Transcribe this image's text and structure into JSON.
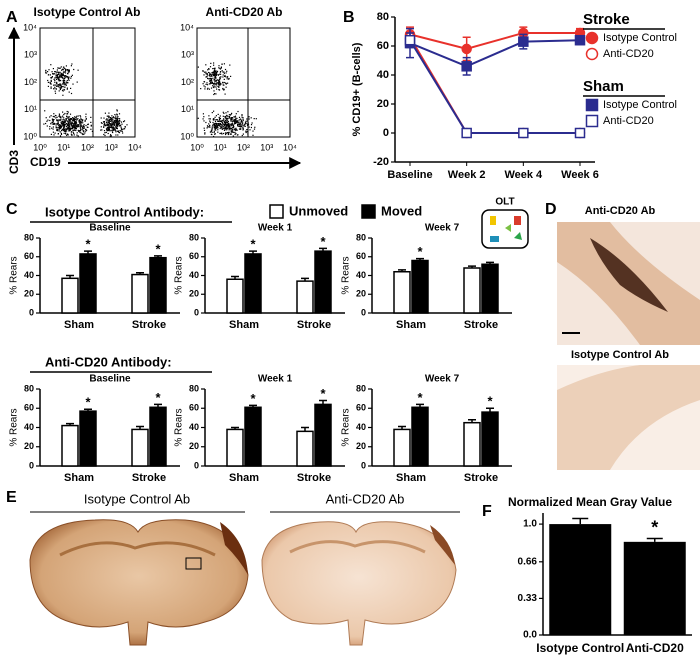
{
  "figure": {
    "panel_labels": [
      "A",
      "B",
      "C",
      "D",
      "E",
      "F"
    ],
    "panel_a": {
      "titles": [
        "Isotype Control Ab",
        "Anti-CD20 Ab"
      ],
      "tick_labels": [
        "10⁰",
        "10¹",
        "10²",
        "10³",
        "10⁴"
      ],
      "y_axis": "CD3",
      "x_axis": "CD19"
    },
    "panel_c": {
      "group_titles": [
        "Isotype Control Antibody:",
        "Anti-CD20 Antibody:"
      ],
      "icon_label": "OLT"
    },
    "panel_d": {
      "titles": [
        "Anti-CD20 Ab",
        "Isotype Control Ab"
      ]
    },
    "panel_e": {
      "titles": [
        "Isotype Control Ab",
        "Anti-CD20 Ab"
      ]
    }
  },
  "chart_data": [
    {
      "type": "line",
      "y_label": "% CD19+ (B-cells)",
      "categories": [
        "Baseline",
        "Week 2",
        "Week 4",
        "Week 6"
      ],
      "ylim": [
        -20,
        80
      ],
      "yticks": [
        -20,
        0,
        20,
        40,
        60,
        80
      ],
      "legend_groups": [
        "Stroke",
        "Sham"
      ],
      "series": [
        {
          "name": "Isotype Control",
          "color": "#e8312b",
          "marker": "circle",
          "filled": true,
          "values": [
            68,
            58,
            69,
            69
          ],
          "errors": [
            5,
            8,
            4,
            3
          ]
        },
        {
          "name": "Anti-CD20",
          "color": "#e8312b",
          "marker": "circle",
          "filled": false,
          "values": [
            66,
            0,
            0,
            0
          ],
          "errors": [
            4,
            1,
            1,
            1
          ]
        },
        {
          "name": "Isotype Control",
          "color": "#2b2c8f",
          "marker": "square",
          "filled": true,
          "values": [
            62,
            46,
            63,
            64
          ],
          "errors": [
            10,
            6,
            5,
            3
          ]
        },
        {
          "name": "Anti-CD20",
          "color": "#2b2c8f",
          "marker": "square",
          "filled": false,
          "values": [
            64,
            0,
            0,
            0
          ],
          "errors": [
            5,
            1,
            1,
            1
          ]
        }
      ]
    },
    {
      "type": "bar",
      "title": "Baseline",
      "y_label": "% Rears",
      "categories": [
        "Sham",
        "Stroke"
      ],
      "ylim": [
        0,
        80
      ],
      "yticks": [
        0,
        20,
        40,
        60,
        80
      ],
      "significance": [
        "*",
        "*"
      ],
      "series": [
        {
          "name": "Unmoved",
          "color": "#ffffff",
          "values": [
            37,
            41
          ],
          "errors": [
            3,
            2
          ]
        },
        {
          "name": "Moved",
          "color": "#000000",
          "values": [
            63,
            59
          ],
          "errors": [
            3,
            2
          ]
        }
      ]
    },
    {
      "type": "bar",
      "title": "Week 1",
      "y_label": "% Rears",
      "categories": [
        "Sham",
        "Stroke"
      ],
      "ylim": [
        0,
        80
      ],
      "yticks": [
        0,
        20,
        40,
        60,
        80
      ],
      "significance": [
        "*",
        "*"
      ],
      "series": [
        {
          "name": "Unmoved",
          "color": "#ffffff",
          "values": [
            36,
            34
          ],
          "errors": [
            3,
            3
          ]
        },
        {
          "name": "Moved",
          "color": "#000000",
          "values": [
            63,
            66
          ],
          "errors": [
            3,
            3
          ]
        }
      ]
    },
    {
      "type": "bar",
      "title": "Week 7",
      "y_label": "% Rears",
      "categories": [
        "Sham",
        "Stroke"
      ],
      "ylim": [
        0,
        80
      ],
      "yticks": [
        0,
        20,
        40,
        60,
        80
      ],
      "significance": [
        "*",
        null
      ],
      "series": [
        {
          "name": "Unmoved",
          "color": "#ffffff",
          "values": [
            44,
            48
          ],
          "errors": [
            2,
            2
          ]
        },
        {
          "name": "Moved",
          "color": "#000000",
          "values": [
            56,
            52
          ],
          "errors": [
            2,
            2
          ]
        }
      ]
    },
    {
      "type": "bar",
      "title": "Baseline",
      "y_label": "% Rears",
      "categories": [
        "Sham",
        "Stroke"
      ],
      "ylim": [
        0,
        80
      ],
      "yticks": [
        0,
        20,
        40,
        60,
        80
      ],
      "significance": [
        "*",
        "*"
      ],
      "series": [
        {
          "name": "Unmoved",
          "color": "#ffffff",
          "values": [
            42,
            38
          ],
          "errors": [
            2,
            3
          ]
        },
        {
          "name": "Moved",
          "color": "#000000",
          "values": [
            57,
            61
          ],
          "errors": [
            2,
            3
          ]
        }
      ]
    },
    {
      "type": "bar",
      "title": "Week 1",
      "y_label": "% Rears",
      "categories": [
        "Sham",
        "Stroke"
      ],
      "ylim": [
        0,
        80
      ],
      "yticks": [
        0,
        20,
        40,
        60,
        80
      ],
      "significance": [
        "*",
        "*"
      ],
      "series": [
        {
          "name": "Unmoved",
          "color": "#ffffff",
          "values": [
            38,
            36
          ],
          "errors": [
            2,
            4
          ]
        },
        {
          "name": "Moved",
          "color": "#000000",
          "values": [
            61,
            64
          ],
          "errors": [
            2,
            4
          ]
        }
      ]
    },
    {
      "type": "bar",
      "title": "Week 7",
      "y_label": "% Rears",
      "categories": [
        "Sham",
        "Stroke"
      ],
      "ylim": [
        0,
        80
      ],
      "yticks": [
        0,
        20,
        40,
        60,
        80
      ],
      "significance": [
        "*",
        "*"
      ],
      "series": [
        {
          "name": "Unmoved",
          "color": "#ffffff",
          "values": [
            38,
            45
          ],
          "errors": [
            3,
            3
          ]
        },
        {
          "name": "Moved",
          "color": "#000000",
          "values": [
            61,
            56
          ],
          "errors": [
            3,
            4
          ]
        }
      ]
    },
    {
      "type": "column",
      "title": "Normalized Mean Gray Value",
      "categories": [
        "Isotype Control",
        "Anti-CD20"
      ],
      "values": [
        1.0,
        0.84
      ],
      "errors": [
        0.05,
        0.03
      ],
      "significance": [
        null,
        "*"
      ],
      "color": "#000000",
      "ylim": [
        0,
        1.1
      ],
      "yticks": [
        {
          "value": 0,
          "label": "0.0"
        },
        0.33,
        0.66,
        {
          "value": 1,
          "label": "1.0"
        }
      ]
    }
  ]
}
